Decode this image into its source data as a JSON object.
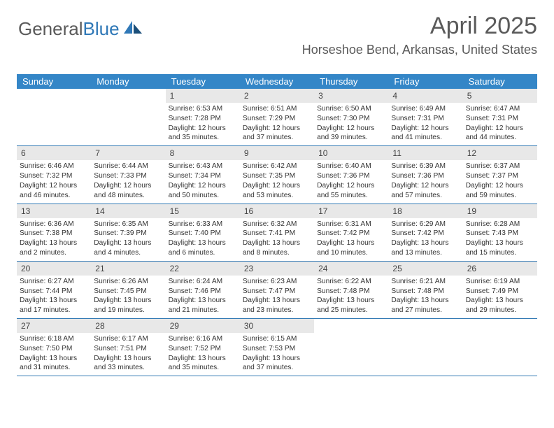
{
  "brand": {
    "part1": "General",
    "part2": "Blue"
  },
  "title": "April 2025",
  "location": "Horseshoe Bend, Arkansas, United States",
  "colors": {
    "header_bg": "#3486c7",
    "row_border": "#3279b4",
    "daynum_bg": "#e8e8e8",
    "text": "#5a5a5a"
  },
  "dow": [
    "Sunday",
    "Monday",
    "Tuesday",
    "Wednesday",
    "Thursday",
    "Friday",
    "Saturday"
  ],
  "weeks": [
    [
      {
        "n": "",
        "sr": "",
        "ss": "",
        "dl": ""
      },
      {
        "n": "",
        "sr": "",
        "ss": "",
        "dl": ""
      },
      {
        "n": "1",
        "sr": "Sunrise: 6:53 AM",
        "ss": "Sunset: 7:28 PM",
        "dl": "Daylight: 12 hours and 35 minutes."
      },
      {
        "n": "2",
        "sr": "Sunrise: 6:51 AM",
        "ss": "Sunset: 7:29 PM",
        "dl": "Daylight: 12 hours and 37 minutes."
      },
      {
        "n": "3",
        "sr": "Sunrise: 6:50 AM",
        "ss": "Sunset: 7:30 PM",
        "dl": "Daylight: 12 hours and 39 minutes."
      },
      {
        "n": "4",
        "sr": "Sunrise: 6:49 AM",
        "ss": "Sunset: 7:31 PM",
        "dl": "Daylight: 12 hours and 41 minutes."
      },
      {
        "n": "5",
        "sr": "Sunrise: 6:47 AM",
        "ss": "Sunset: 7:31 PM",
        "dl": "Daylight: 12 hours and 44 minutes."
      }
    ],
    [
      {
        "n": "6",
        "sr": "Sunrise: 6:46 AM",
        "ss": "Sunset: 7:32 PM",
        "dl": "Daylight: 12 hours and 46 minutes."
      },
      {
        "n": "7",
        "sr": "Sunrise: 6:44 AM",
        "ss": "Sunset: 7:33 PM",
        "dl": "Daylight: 12 hours and 48 minutes."
      },
      {
        "n": "8",
        "sr": "Sunrise: 6:43 AM",
        "ss": "Sunset: 7:34 PM",
        "dl": "Daylight: 12 hours and 50 minutes."
      },
      {
        "n": "9",
        "sr": "Sunrise: 6:42 AM",
        "ss": "Sunset: 7:35 PM",
        "dl": "Daylight: 12 hours and 53 minutes."
      },
      {
        "n": "10",
        "sr": "Sunrise: 6:40 AM",
        "ss": "Sunset: 7:36 PM",
        "dl": "Daylight: 12 hours and 55 minutes."
      },
      {
        "n": "11",
        "sr": "Sunrise: 6:39 AM",
        "ss": "Sunset: 7:36 PM",
        "dl": "Daylight: 12 hours and 57 minutes."
      },
      {
        "n": "12",
        "sr": "Sunrise: 6:37 AM",
        "ss": "Sunset: 7:37 PM",
        "dl": "Daylight: 12 hours and 59 minutes."
      }
    ],
    [
      {
        "n": "13",
        "sr": "Sunrise: 6:36 AM",
        "ss": "Sunset: 7:38 PM",
        "dl": "Daylight: 13 hours and 2 minutes."
      },
      {
        "n": "14",
        "sr": "Sunrise: 6:35 AM",
        "ss": "Sunset: 7:39 PM",
        "dl": "Daylight: 13 hours and 4 minutes."
      },
      {
        "n": "15",
        "sr": "Sunrise: 6:33 AM",
        "ss": "Sunset: 7:40 PM",
        "dl": "Daylight: 13 hours and 6 minutes."
      },
      {
        "n": "16",
        "sr": "Sunrise: 6:32 AM",
        "ss": "Sunset: 7:41 PM",
        "dl": "Daylight: 13 hours and 8 minutes."
      },
      {
        "n": "17",
        "sr": "Sunrise: 6:31 AM",
        "ss": "Sunset: 7:42 PM",
        "dl": "Daylight: 13 hours and 10 minutes."
      },
      {
        "n": "18",
        "sr": "Sunrise: 6:29 AM",
        "ss": "Sunset: 7:42 PM",
        "dl": "Daylight: 13 hours and 13 minutes."
      },
      {
        "n": "19",
        "sr": "Sunrise: 6:28 AM",
        "ss": "Sunset: 7:43 PM",
        "dl": "Daylight: 13 hours and 15 minutes."
      }
    ],
    [
      {
        "n": "20",
        "sr": "Sunrise: 6:27 AM",
        "ss": "Sunset: 7:44 PM",
        "dl": "Daylight: 13 hours and 17 minutes."
      },
      {
        "n": "21",
        "sr": "Sunrise: 6:26 AM",
        "ss": "Sunset: 7:45 PM",
        "dl": "Daylight: 13 hours and 19 minutes."
      },
      {
        "n": "22",
        "sr": "Sunrise: 6:24 AM",
        "ss": "Sunset: 7:46 PM",
        "dl": "Daylight: 13 hours and 21 minutes."
      },
      {
        "n": "23",
        "sr": "Sunrise: 6:23 AM",
        "ss": "Sunset: 7:47 PM",
        "dl": "Daylight: 13 hours and 23 minutes."
      },
      {
        "n": "24",
        "sr": "Sunrise: 6:22 AM",
        "ss": "Sunset: 7:48 PM",
        "dl": "Daylight: 13 hours and 25 minutes."
      },
      {
        "n": "25",
        "sr": "Sunrise: 6:21 AM",
        "ss": "Sunset: 7:48 PM",
        "dl": "Daylight: 13 hours and 27 minutes."
      },
      {
        "n": "26",
        "sr": "Sunrise: 6:19 AM",
        "ss": "Sunset: 7:49 PM",
        "dl": "Daylight: 13 hours and 29 minutes."
      }
    ],
    [
      {
        "n": "27",
        "sr": "Sunrise: 6:18 AM",
        "ss": "Sunset: 7:50 PM",
        "dl": "Daylight: 13 hours and 31 minutes."
      },
      {
        "n": "28",
        "sr": "Sunrise: 6:17 AM",
        "ss": "Sunset: 7:51 PM",
        "dl": "Daylight: 13 hours and 33 minutes."
      },
      {
        "n": "29",
        "sr": "Sunrise: 6:16 AM",
        "ss": "Sunset: 7:52 PM",
        "dl": "Daylight: 13 hours and 35 minutes."
      },
      {
        "n": "30",
        "sr": "Sunrise: 6:15 AM",
        "ss": "Sunset: 7:53 PM",
        "dl": "Daylight: 13 hours and 37 minutes."
      },
      {
        "n": "",
        "sr": "",
        "ss": "",
        "dl": ""
      },
      {
        "n": "",
        "sr": "",
        "ss": "",
        "dl": ""
      },
      {
        "n": "",
        "sr": "",
        "ss": "",
        "dl": ""
      }
    ]
  ]
}
